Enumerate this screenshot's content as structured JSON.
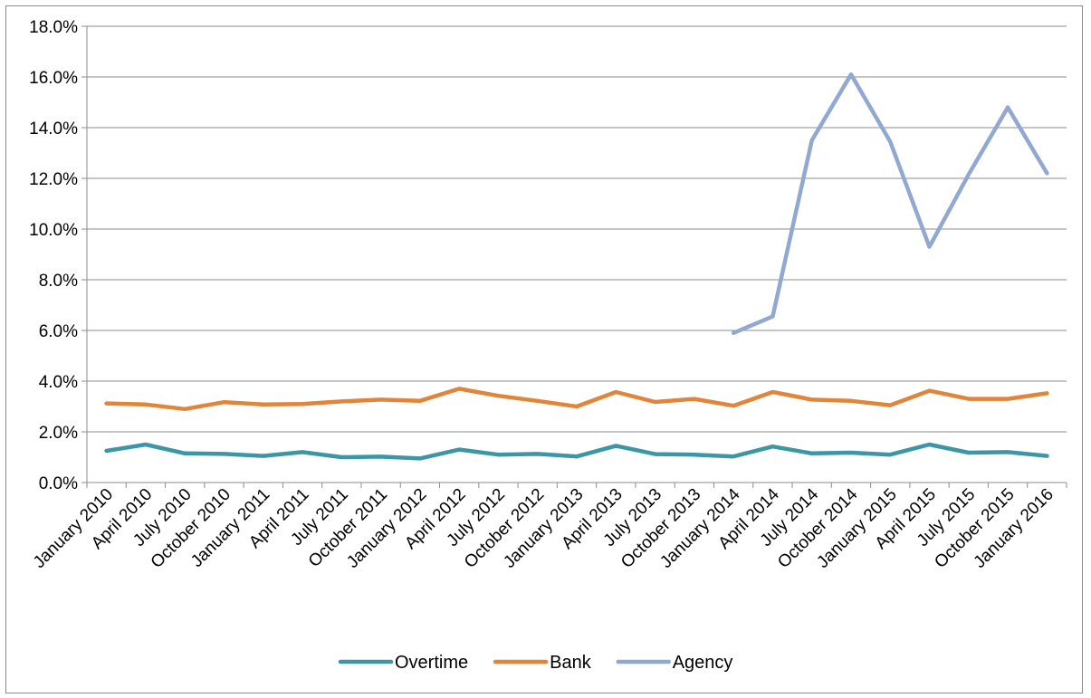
{
  "chart_data": {
    "type": "line",
    "title": "",
    "xlabel": "",
    "ylabel": "",
    "ylim": [
      0,
      18
    ],
    "y_tick_step": 2,
    "y_tick_format": "percent_1dp",
    "grid": true,
    "legend_position": "bottom",
    "categories": [
      "January 2010",
      "April 2010",
      "July 2010",
      "October 2010",
      "January 2011",
      "April 2011",
      "July 2011",
      "October 2011",
      "January 2012",
      "April 2012",
      "July 2012",
      "October 2012",
      "January 2013",
      "April 2013",
      "July 2013",
      "October 2013",
      "January 2014",
      "April 2014",
      "July 2014",
      "October 2014",
      "January 2015",
      "April 2015",
      "July 2015",
      "October 2015",
      "January 2016"
    ],
    "series": [
      {
        "name": "Overtime",
        "color": "#3b96a6",
        "values": [
          1.25,
          1.5,
          1.15,
          1.13,
          1.05,
          1.2,
          1.0,
          1.02,
          0.95,
          1.3,
          1.1,
          1.13,
          1.03,
          1.45,
          1.12,
          1.1,
          1.03,
          1.42,
          1.15,
          1.18,
          1.1,
          1.5,
          1.18,
          1.2,
          1.05
        ]
      },
      {
        "name": "Bank",
        "color": "#e0853a",
        "values": [
          3.12,
          3.08,
          2.9,
          3.17,
          3.08,
          3.1,
          3.2,
          3.27,
          3.22,
          3.7,
          3.42,
          3.22,
          3.0,
          3.57,
          3.18,
          3.3,
          3.03,
          3.57,
          3.27,
          3.22,
          3.05,
          3.62,
          3.3,
          3.3,
          3.52
        ]
      },
      {
        "name": "Agency",
        "color": "#91a8d1",
        "values": [
          null,
          null,
          null,
          null,
          null,
          null,
          null,
          null,
          null,
          null,
          null,
          null,
          null,
          null,
          null,
          null,
          5.9,
          6.55,
          13.5,
          16.1,
          13.45,
          9.3,
          12.15,
          14.8,
          12.2
        ]
      }
    ]
  }
}
